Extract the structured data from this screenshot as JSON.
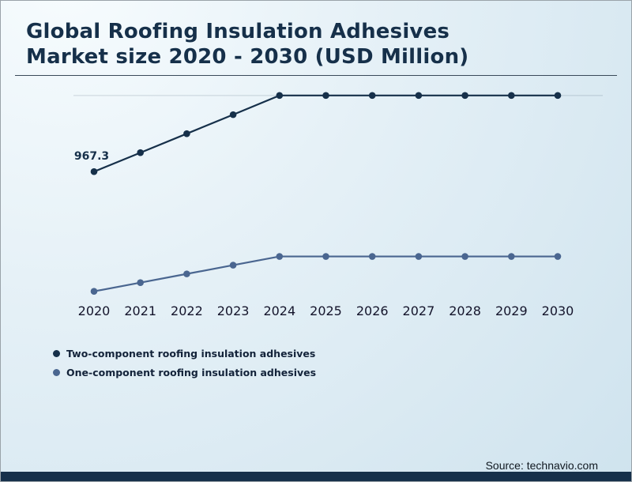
{
  "header": {
    "title_line1": "Global Roofing Insulation Adhesives",
    "title_line2": "Market size 2020 - 2030 (USD Million)"
  },
  "chart_data": {
    "type": "line",
    "title": "Global Roofing Insulation Adhesives Market size 2020 - 2030 (USD Million)",
    "categories": [
      "2020",
      "2021",
      "2022",
      "2023",
      "2024",
      "2025",
      "2026",
      "2027",
      "2028",
      "2029",
      "2030"
    ],
    "series": [
      {
        "name": "Two-component roofing insulation adhesives",
        "color": "#16304a",
        "values": [
          967.3,
          1065,
          1163,
          1261,
          1360,
          1360,
          1360,
          1360,
          1360,
          1360,
          1360
        ]
      },
      {
        "name": "One-component roofing insulation adhesives",
        "color": "#4a6690",
        "values": [
          350,
          395,
          440,
          485,
          530,
          530,
          530,
          530,
          530,
          530,
          530
        ]
      }
    ],
    "xlabel": "",
    "ylabel": "",
    "ylim": [
      300,
      1400
    ],
    "grid": "minimal",
    "legend_position": "bottom-left",
    "annotations": [
      {
        "series": 0,
        "index": 0,
        "text": "967.3"
      }
    ]
  },
  "footer": {
    "source": "Source: technavio.com"
  },
  "colors": {
    "title": "#16304a",
    "series_two_component": "#16304a",
    "series_one_component": "#4a6690",
    "footer_bar": "#16304a",
    "background_light": "#f7fcfe",
    "background_dark": "#cfe3ee"
  }
}
